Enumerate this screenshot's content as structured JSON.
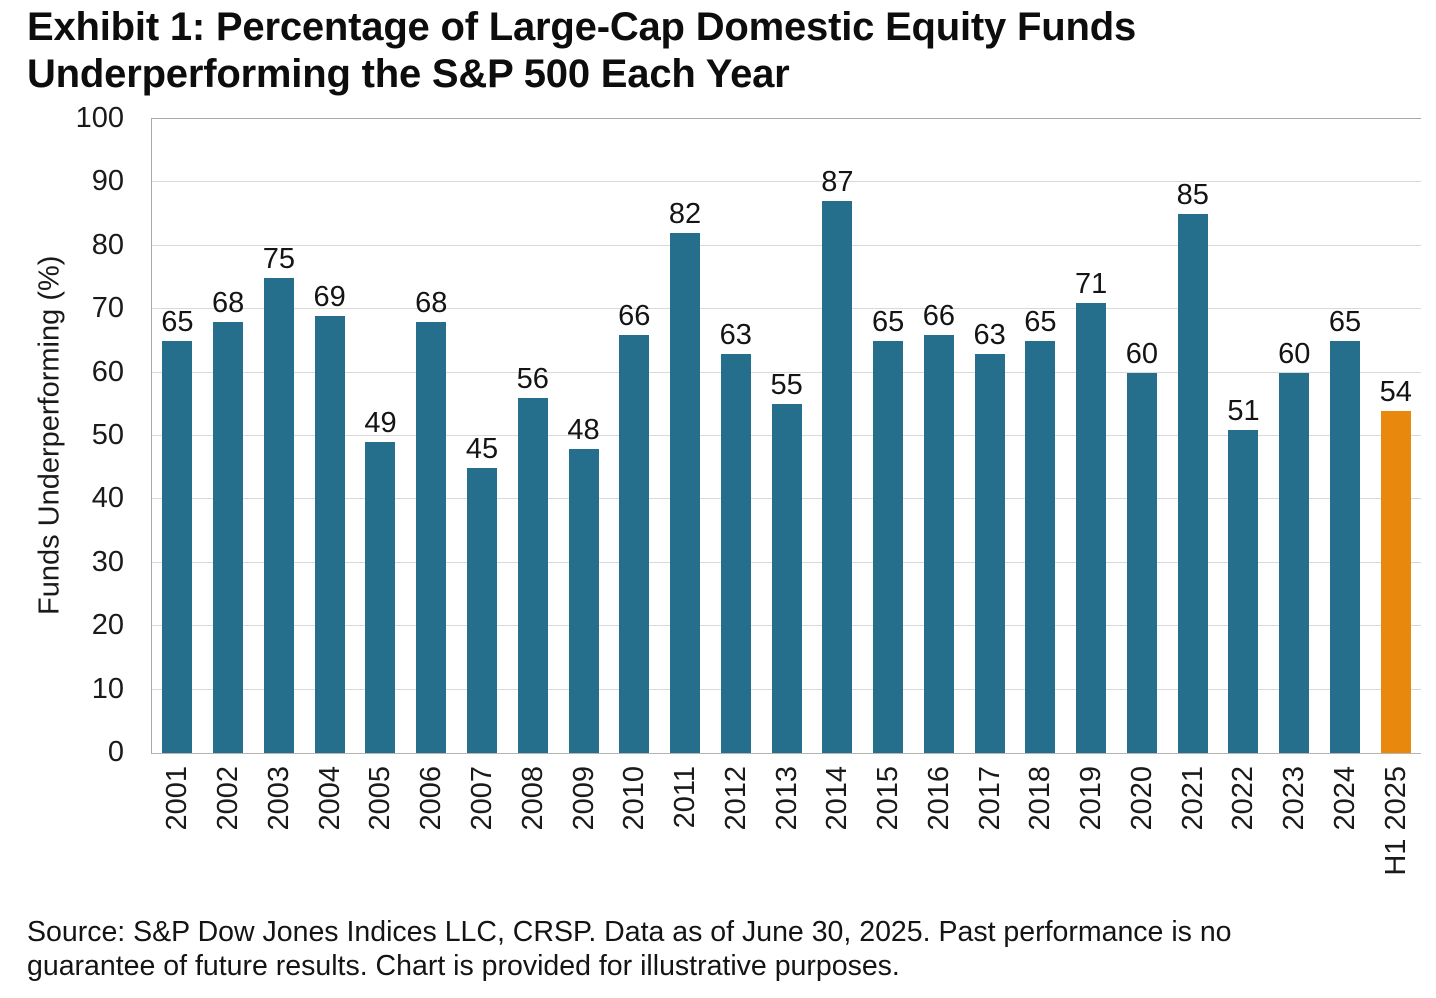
{
  "chart_data": {
    "type": "bar",
    "title": "Exhibit 1: Percentage of Large-Cap Domestic Equity Funds Underperforming the S&P 500 Each Year",
    "ylabel": "Funds Underperforming (%)",
    "xlabel": "",
    "categories": [
      "2001",
      "2002",
      "2003",
      "2004",
      "2005",
      "2006",
      "2007",
      "2008",
      "2009",
      "2010",
      "2011",
      "2012",
      "2013",
      "2014",
      "2015",
      "2016",
      "2017",
      "2018",
      "2019",
      "2020",
      "2021",
      "2022",
      "2023",
      "2024",
      "H1 2025"
    ],
    "values": [
      65,
      68,
      75,
      69,
      49,
      68,
      45,
      56,
      48,
      66,
      82,
      63,
      55,
      87,
      65,
      66,
      63,
      65,
      71,
      60,
      85,
      51,
      60,
      65,
      54
    ],
    "ylim": [
      0,
      100
    ],
    "yticks": [
      0,
      10,
      20,
      30,
      40,
      50,
      60,
      70,
      80,
      90,
      100
    ],
    "grid": "horizontal",
    "legend": "none",
    "value_labels": "above bars",
    "highlight_index": 24,
    "colors": {
      "bar": "#256F8D",
      "highlight_bar": "#E8890D",
      "gridline": "#D9D9D9",
      "axis": "#A8A8A8",
      "text": "#1A1A1A"
    }
  },
  "source_note": "Source: S&P Dow Jones Indices LLC, CRSP.  Data as of June 30, 2025.  Past performance is no guarantee of future results.  Chart is provided for illustrative purposes."
}
